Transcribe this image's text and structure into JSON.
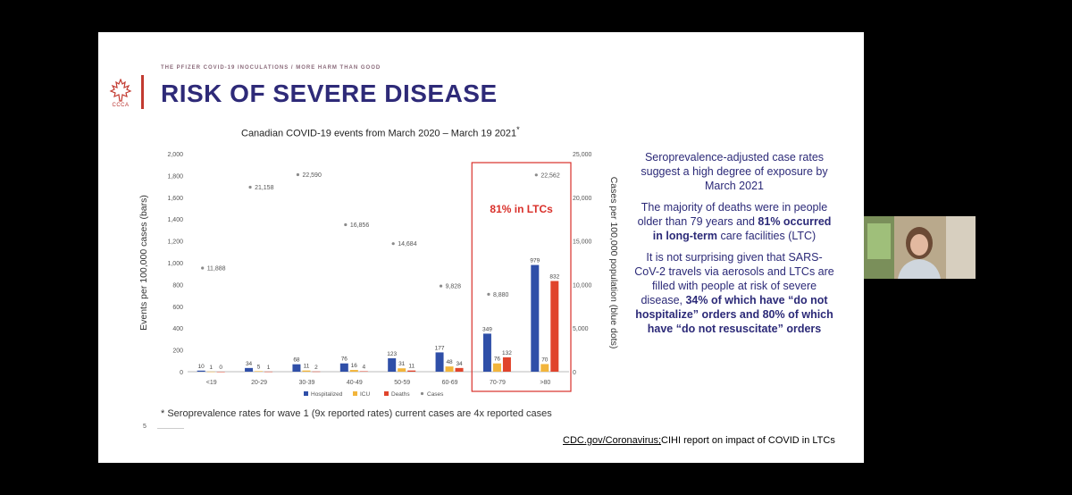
{
  "slide": {
    "supertitle": "THE PFIZER COVID-19 INOCULATIONS / MORE HARM THAN GOOD",
    "title": "RISK OF SEVERE DISEASE",
    "logo_text": "CCCA",
    "chart_title": "Canadian COVID-19 events from March 2020 – March 19 2021",
    "chart_title_mark": "*",
    "footnote": "* Seroprevalence rates for wave 1 (9x reported rates) current cases are 4x reported cases",
    "page_number": "5",
    "source_link": "CDC.gov/Coronavirus;",
    "source_text": "CIHI report on impact of COVID in LTCs",
    "right_text": {
      "para1": "Seroprevalence-adjusted case rates suggest a high degree of exposure by March 2021",
      "para2_a": "The majority of deaths were in people older than 79 years and ",
      "para2_b": "81% occurred in long-term",
      "para2_c": " care facilities (LTC)",
      "para3_a": "It is not surprising given that SARS-CoV-2 travels via aerosols and LTCs are filled with people at risk of severe disease, ",
      "para3_b": "34% of which have “do not hospitalize” orders and 80% of which have “do not resuscitate” orders"
    }
  },
  "colors": {
    "hospitalized": "#2f4fa8",
    "icu": "#f2b53c",
    "deaths": "#e0442c",
    "cases": "#8a8a8a",
    "title": "#2e2a78",
    "accent_red": "#d9302a"
  },
  "chart_data": {
    "type": "bar",
    "title": "Canadian COVID-19 events from March 2020 – March 19 2021",
    "categories": [
      "<19",
      "20-29",
      "30-39",
      "40-49",
      "50-59",
      "60-69",
      "70-79",
      ">80"
    ],
    "series": [
      {
        "name": "Hospitalized",
        "axis": "left",
        "values": [
          10,
          34,
          68,
          76,
          123,
          177,
          349,
          979
        ]
      },
      {
        "name": "ICU",
        "axis": "left",
        "values": [
          1,
          5,
          11,
          16,
          31,
          48,
          76,
          70
        ]
      },
      {
        "name": "Deaths",
        "axis": "left",
        "values": [
          0,
          1,
          2,
          4,
          11,
          34,
          132,
          832
        ]
      },
      {
        "name": "Cases",
        "axis": "right",
        "kind": "dots",
        "values": [
          11888,
          21158,
          22590,
          16856,
          14684,
          9828,
          8880,
          22562
        ]
      }
    ],
    "ylabel": "Events per 100,000 cases (bars)",
    "y2label": "Cases per 100,000 population (blue dots)",
    "ylim": [
      0,
      2000
    ],
    "yticks": [
      "0",
      "200",
      "400",
      "600",
      "800",
      "1,000",
      "1,200",
      "1,400",
      "1,600",
      "1,800",
      "2,000"
    ],
    "y2lim": [
      0,
      25000
    ],
    "y2ticks": [
      "0",
      "5,000",
      "10,000",
      "15,000",
      "20,000",
      "25,000"
    ],
    "legend": [
      "Hospitalized",
      "ICU",
      "Deaths",
      "Cases"
    ],
    "annotation": "81% in LTCs"
  }
}
